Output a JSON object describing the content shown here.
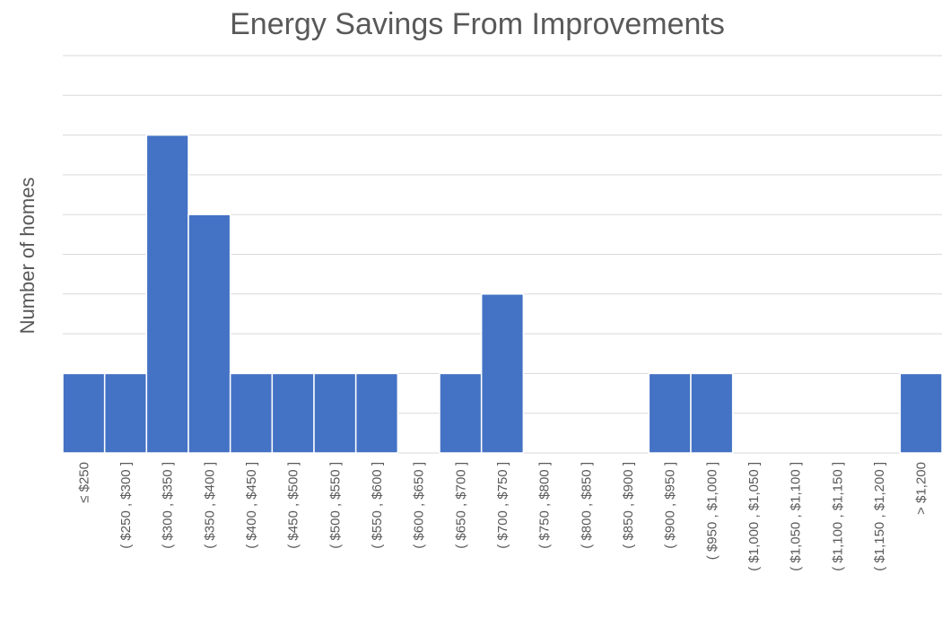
{
  "chart_data": {
    "type": "bar",
    "title": "Energy Savings From Improvements",
    "y_label": "Number of homes",
    "categories": [
      "≤ $250",
      "( $250 , $300 ]",
      "( $300 , $350 ]",
      "( $350 , $400 ]",
      "( $400 , $450 ]",
      "( $450 , $500 ]",
      "( $500 , $550 ]",
      "( $550 , $600 ]",
      "( $600 , $650 ]",
      "( $650 , $700 ]",
      "( $700 , $750 ]",
      "( $750 , $800 ]",
      "( $800 , $850 ]",
      "( $850 , $900 ]",
      "( $900 , $950 ]",
      "( $950 , $1,000 ]",
      "( $1,000 , $1,050 ]",
      "( $1,050 , $1,100 ]",
      "( $1,100 , $1,150 ]",
      "( $1,150 , $1,200 ]",
      "> $1,200"
    ],
    "values": [
      2,
      2,
      8,
      6,
      2,
      2,
      2,
      2,
      0,
      2,
      4,
      0,
      0,
      0,
      2,
      2,
      0,
      0,
      0,
      0,
      2
    ],
    "color": "#4472c4",
    "ylim": [
      0,
      10
    ],
    "yticks": [
      0,
      1,
      2,
      3,
      4,
      5,
      6,
      7,
      8,
      9,
      10
    ],
    "grid": true
  }
}
